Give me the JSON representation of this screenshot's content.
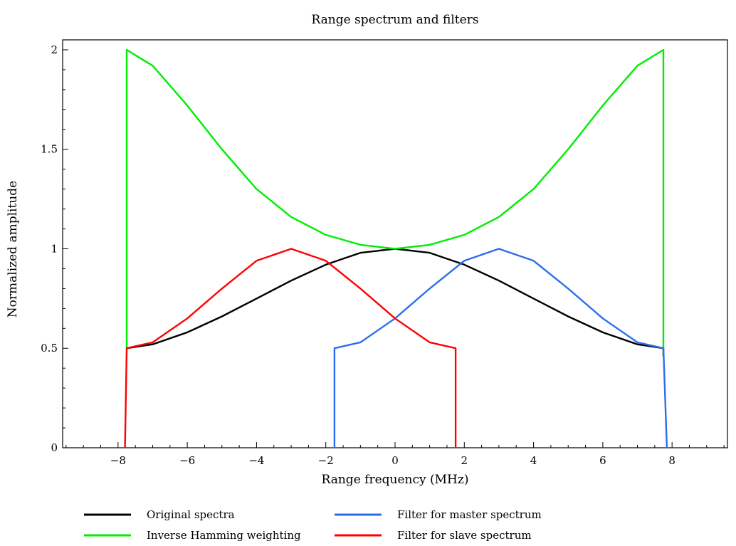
{
  "chart_data": {
    "type": "line",
    "title": "Range spectrum and filters",
    "xlabel": "Range frequency (MHz)",
    "ylabel": "Normalized amplitude",
    "xlim": [
      -9.6,
      9.6
    ],
    "ylim": [
      0,
      2.05
    ],
    "x_ticks": [
      "−8",
      "−6",
      "−4",
      "−2",
      "0",
      "2",
      "4",
      "6",
      "8"
    ],
    "x_tick_values": [
      -8,
      -6,
      -4,
      -2,
      0,
      2,
      4,
      6,
      8
    ],
    "y_ticks": [
      "0",
      "0.5",
      "1",
      "1.5",
      "2"
    ],
    "y_tick_values": [
      0,
      0.5,
      1,
      1.5,
      2
    ],
    "grid": false,
    "legend_position": "below",
    "series": [
      {
        "name": "Original spectra",
        "color": "#000000",
        "x": [
          -7.75,
          -7.0,
          -6.0,
          -5.0,
          -4.0,
          -3.0,
          -2.0,
          -1.0,
          0.0,
          1.0,
          2.0,
          3.0,
          4.0,
          5.0,
          6.0,
          7.0,
          7.75,
          7.75
        ],
        "y": [
          0.5,
          0.52,
          0.58,
          0.66,
          0.75,
          0.84,
          0.92,
          0.98,
          1.0,
          0.98,
          0.92,
          0.84,
          0.75,
          0.66,
          0.58,
          0.52,
          0.5,
          0.46
        ]
      },
      {
        "name": "Inverse Hamming weighting",
        "color": "#00ee00",
        "x": [
          -7.75,
          -7.75,
          -7.0,
          -6.0,
          -5.0,
          -4.0,
          -3.0,
          -2.0,
          -1.0,
          0.0,
          1.0,
          2.0,
          3.0,
          4.0,
          5.0,
          6.0,
          7.0,
          7.75,
          7.75
        ],
        "y": [
          0.5,
          2.0,
          1.92,
          1.72,
          1.5,
          1.3,
          1.16,
          1.07,
          1.02,
          1.0,
          1.02,
          1.07,
          1.16,
          1.3,
          1.5,
          1.72,
          1.92,
          2.0,
          0.5
        ]
      },
      {
        "name": "Filter for master spectrum",
        "color": "#2a6ef0",
        "x": [
          -1.75,
          -1.75,
          -1.0,
          0.0,
          1.0,
          2.0,
          3.0,
          4.0,
          5.0,
          6.0,
          7.0,
          7.75,
          7.85
        ],
        "y": [
          0.0,
          0.5,
          0.53,
          0.65,
          0.8,
          0.94,
          1.0,
          0.94,
          0.8,
          0.65,
          0.53,
          0.5,
          0.0
        ]
      },
      {
        "name": "Filter for slave spectrum",
        "color": "#ff0000",
        "x": [
          -7.8,
          -7.75,
          -7.0,
          -6.0,
          -5.0,
          -4.0,
          -3.0,
          -2.0,
          -1.0,
          0.0,
          1.0,
          1.75,
          1.75
        ],
        "y": [
          0.0,
          0.5,
          0.53,
          0.65,
          0.8,
          0.94,
          1.0,
          0.94,
          0.8,
          0.65,
          0.53,
          0.5,
          0.0
        ]
      }
    ]
  }
}
